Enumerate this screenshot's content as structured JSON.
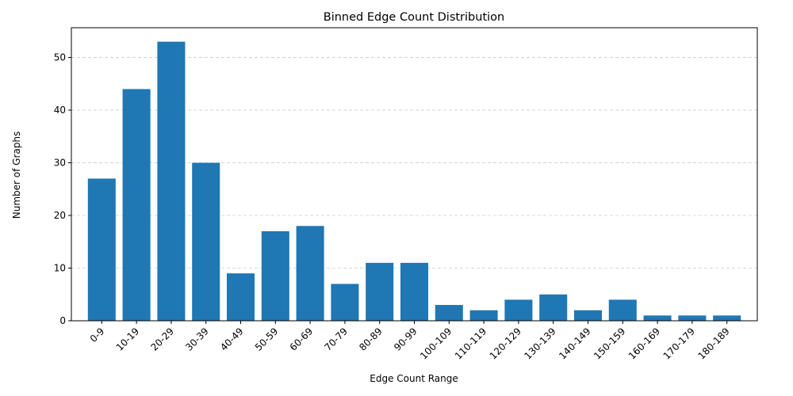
{
  "colors": {
    "bar": "#1f77b4",
    "grid": "#cccccc",
    "axis": "#000000"
  },
  "chart_data": {
    "type": "bar",
    "title": "Binned Edge Count Distribution",
    "xlabel": "Edge Count Range",
    "ylabel": "Number of Graphs",
    "categories": [
      "0-9",
      "10-19",
      "20-29",
      "30-39",
      "40-49",
      "50-59",
      "60-69",
      "70-79",
      "80-89",
      "90-99",
      "100-109",
      "110-119",
      "120-129",
      "130-139",
      "140-149",
      "150-159",
      "160-169",
      "170-179",
      "180-189"
    ],
    "values": [
      27,
      44,
      53,
      30,
      9,
      17,
      18,
      7,
      11,
      11,
      3,
      2,
      4,
      5,
      2,
      4,
      1,
      1,
      1
    ],
    "ylim": [
      0,
      55.65
    ],
    "yticks": [
      0,
      10,
      20,
      30,
      40,
      50
    ],
    "grid": "y-dashed",
    "legend": "none"
  }
}
